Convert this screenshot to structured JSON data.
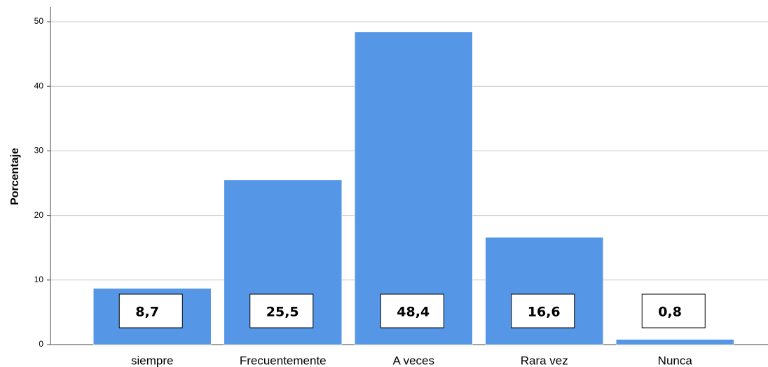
{
  "chart_data": {
    "type": "bar",
    "y_label": "Porcentaje",
    "categories": [
      "siempre",
      "Frecuentemente",
      "A veces",
      "Rara vez",
      "Nunca"
    ],
    "values": [
      8.7,
      25.5,
      48.4,
      16.6,
      0.8
    ],
    "value_labels": [
      "8,7",
      "25,5",
      "48,4",
      "16,6",
      "0,8"
    ],
    "color": "#5596e6",
    "ylim": [
      0,
      52
    ],
    "yticks": [
      0,
      10,
      20,
      30,
      40,
      50
    ],
    "grid": true
  }
}
